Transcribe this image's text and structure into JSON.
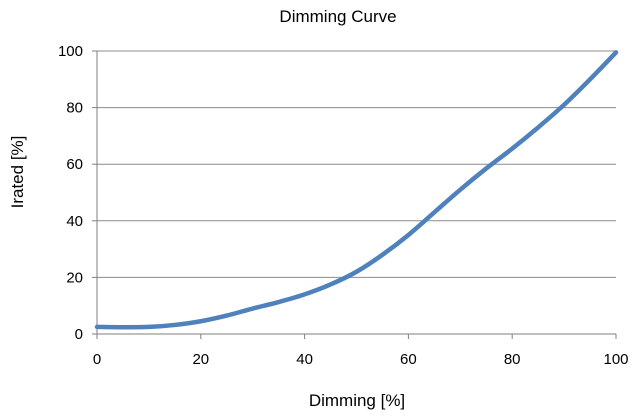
{
  "chart_data": {
    "type": "line",
    "title": "Dimming Curve",
    "xlabel": "Dimming [%]",
    "ylabel": "Irated [%]",
    "xlim": [
      0,
      100
    ],
    "ylim": [
      0,
      100
    ],
    "xticks": [
      0,
      20,
      40,
      60,
      80,
      100
    ],
    "yticks": [
      0,
      20,
      40,
      60,
      80,
      100
    ],
    "grid": "horizontal",
    "legend": "none",
    "series": [
      {
        "color": "#4f81bd",
        "x": [
          0,
          5,
          10,
          15,
          20,
          25,
          30,
          35,
          40,
          45,
          50,
          55,
          60,
          65,
          70,
          75,
          80,
          85,
          90,
          95,
          100
        ],
        "y": [
          2.5,
          2.4,
          2.5,
          3.2,
          4.5,
          6.5,
          9,
          11.3,
          14,
          17.5,
          22,
          28,
          35,
          43,
          51,
          58.5,
          65.5,
          73,
          81,
          90,
          99.5
        ]
      }
    ]
  }
}
